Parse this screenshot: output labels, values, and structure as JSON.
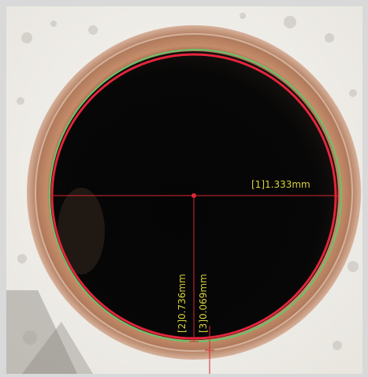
{
  "image": {
    "subject": "circular-hole-micrograph",
    "colors": {
      "frame": "#d9d9d9",
      "background": "#f2f0ec",
      "ring": "#c58c6a",
      "hole": "#050505",
      "fit_circle_green": "#67c46a",
      "fit_circle_red": "#e3263b",
      "measure_line": "#d8262e",
      "label_text": "#d8d23a"
    }
  },
  "measurements": [
    {
      "id": "1",
      "label": "[1]1.333mm",
      "value_mm": 1.333,
      "kind": "diameter"
    },
    {
      "id": "2",
      "label": "[2]0.736mm",
      "value_mm": 0.736,
      "kind": "radius"
    },
    {
      "id": "3",
      "label": "[3]0.069mm",
      "value_mm": 0.069,
      "kind": "gap"
    }
  ]
}
